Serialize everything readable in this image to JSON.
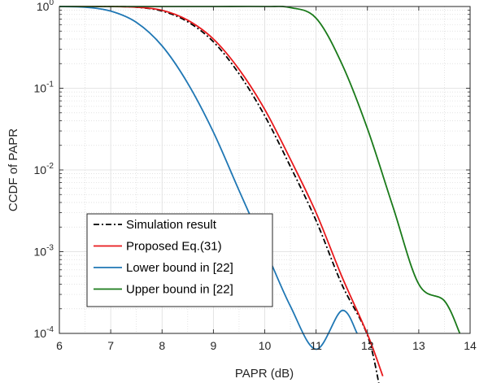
{
  "chart_data": {
    "type": "line",
    "xlabel": "PAPR (dB)",
    "ylabel": "CCDF of PAPR",
    "xlim": [
      6,
      14
    ],
    "ylim": [
      0.0001,
      1
    ],
    "yscale": "log",
    "grid": true,
    "minor_grid": true,
    "legend_position": "lower-left",
    "x_ticks": [
      "6",
      "7",
      "8",
      "9",
      "10",
      "11",
      "12",
      "13",
      "14"
    ],
    "y_ticks": [
      {
        "base": "10",
        "exp": "-4",
        "value": 0.0001
      },
      {
        "base": "10",
        "exp": "-3",
        "value": 0.001
      },
      {
        "base": "10",
        "exp": "-2",
        "value": 0.01
      },
      {
        "base": "10",
        "exp": "-1",
        "value": 0.1
      },
      {
        "base": "10",
        "exp": "0",
        "value": 1
      }
    ],
    "series": [
      {
        "name": "Simulation result",
        "color": "#000000",
        "style": "dashdot",
        "x": [
          6,
          7,
          7.5,
          8,
          8.5,
          9,
          9.5,
          10,
          10.5,
          11,
          11.5,
          12,
          12.25
        ],
        "y": [
          1,
          1,
          0.98,
          0.88,
          0.65,
          0.37,
          0.15,
          0.046,
          0.011,
          0.0024,
          0.0004,
          9.5e-05,
          2e-05
        ]
      },
      {
        "name": "Proposed Eq.(31)",
        "color": "#e8191c",
        "style": "solid",
        "x": [
          6,
          7,
          7.5,
          8,
          8.5,
          9,
          9.5,
          10,
          10.5,
          11,
          11.5,
          12,
          12.3
        ],
        "y": [
          1,
          1,
          0.98,
          0.9,
          0.68,
          0.4,
          0.17,
          0.055,
          0.0135,
          0.003,
          0.0005,
          9.8e-05,
          3e-05
        ]
      },
      {
        "name": "Lower bound in [22]",
        "color": "#1f77b4",
        "style": "solid",
        "x": [
          6,
          6.5,
          7,
          7.5,
          8,
          8.5,
          9,
          9.5,
          10,
          10.5,
          11,
          11.5,
          11.8
        ],
        "y": [
          1,
          0.98,
          0.88,
          0.64,
          0.33,
          0.115,
          0.029,
          0.0056,
          0.0011,
          0.000215,
          6.4e-05,
          0.00019,
          0.0001
        ]
      },
      {
        "name": "Upper bound in [22]",
        "color": "#1a7a1a",
        "style": "solid",
        "x": [
          6,
          8,
          9,
          10,
          10.5,
          11,
          11.5,
          12,
          12.5,
          13,
          13.5,
          13.8
        ],
        "y": [
          1,
          1,
          1,
          1,
          0.97,
          0.72,
          0.2,
          0.032,
          0.0035,
          0.0004,
          0.00025,
          0.0001
        ]
      }
    ]
  }
}
